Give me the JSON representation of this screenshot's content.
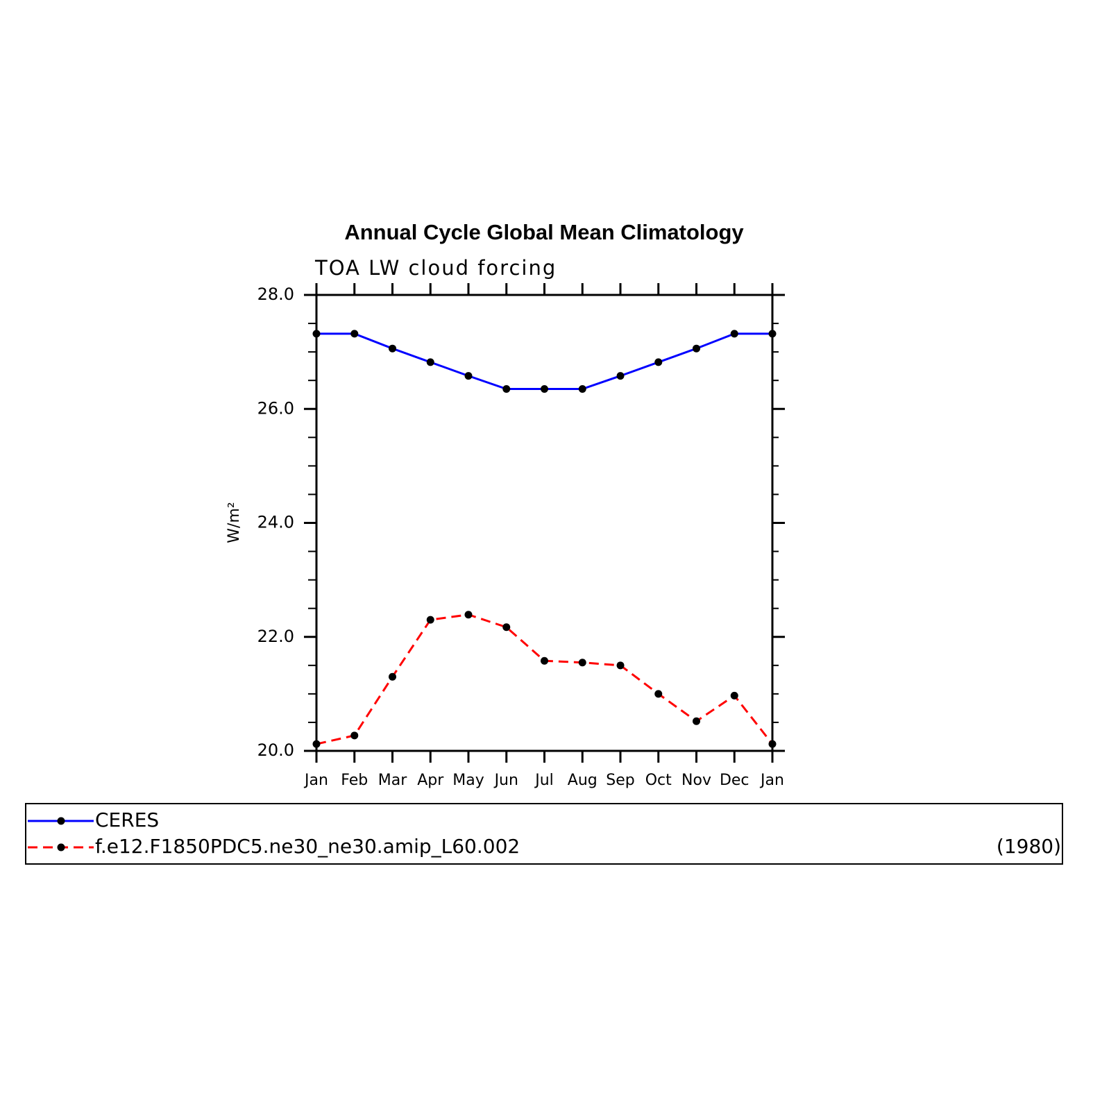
{
  "chart_data": {
    "type": "line",
    "title": "Annual Cycle Global Mean Climatology",
    "subtitle": "TOA LW cloud forcing",
    "y_label": "W/m²",
    "categories": [
      "Jan",
      "Feb",
      "Mar",
      "Apr",
      "May",
      "Jun",
      "Jul",
      "Aug",
      "Sep",
      "Oct",
      "Nov",
      "Dec",
      "Jan"
    ],
    "series": [
      {
        "name": "CERES",
        "color": "#0000ff",
        "dashed": false,
        "values": [
          27.32,
          27.32,
          27.06,
          26.82,
          26.58,
          26.35,
          26.35,
          26.35,
          26.58,
          26.82,
          27.06,
          27.32,
          27.32
        ]
      },
      {
        "name": "f.e12.F1850PDC5.ne30_ne30.amip_L60.002",
        "period": "(1980)",
        "color": "#ff0000",
        "dashed": true,
        "values": [
          20.12,
          20.27,
          21.3,
          22.3,
          22.39,
          22.17,
          21.58,
          21.55,
          21.5,
          21.0,
          20.52,
          20.97,
          20.12
        ]
      }
    ],
    "marker_color": "#000000",
    "ylim": [
      20,
      28
    ],
    "yticks": [
      {
        "value": 20,
        "label": "20.0"
      },
      {
        "value": 22,
        "label": "22.0"
      },
      {
        "value": 24,
        "label": "24.0"
      },
      {
        "value": 26,
        "label": "26.0"
      },
      {
        "value": 28,
        "label": "28.0"
      }
    ],
    "yminorticks": [
      20.5,
      21,
      21.5,
      22.5,
      23,
      23.5,
      24.5,
      25,
      25.5,
      26.5,
      27,
      27.5
    ]
  }
}
